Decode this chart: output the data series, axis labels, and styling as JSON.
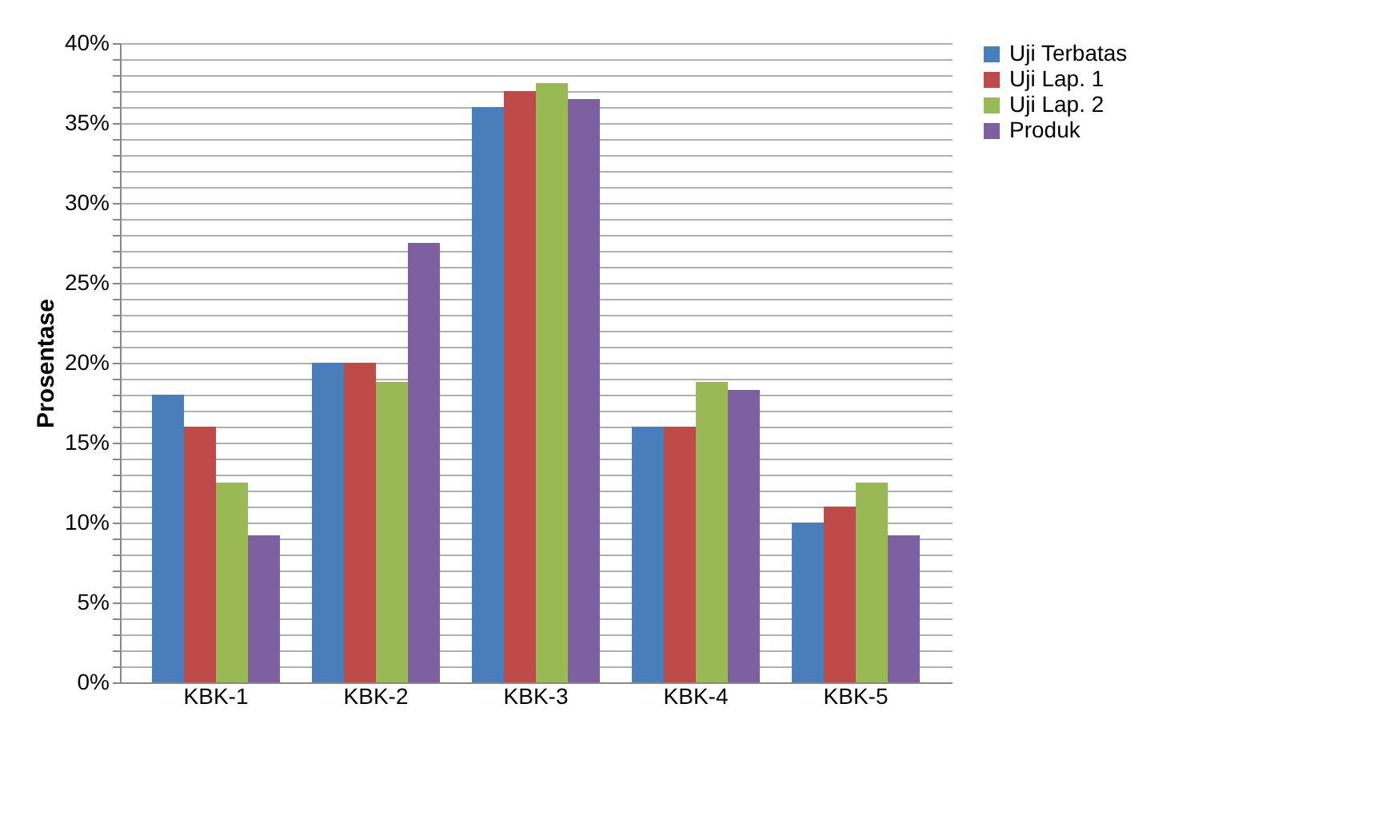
{
  "chart_data": {
    "type": "bar",
    "ylabel": "Prosentase",
    "categories": [
      "KBK-1",
      "KBK-2",
      "KBK-3",
      "KBK-4",
      "KBK-5"
    ],
    "series": [
      {
        "name": "Uji Terbatas",
        "color": "#4a7ebb",
        "values": [
          18,
          20,
          36,
          16,
          10
        ]
      },
      {
        "name": "Uji Lap. 1",
        "color": "#be4b48",
        "values": [
          16,
          20,
          37,
          16,
          11
        ]
      },
      {
        "name": "Uji Lap. 2",
        "color": "#98b954",
        "values": [
          12.5,
          18.8,
          37.5,
          18.8,
          12.5
        ]
      },
      {
        "name": "Produk",
        "color": "#7d60a0",
        "values": [
          9.2,
          27.5,
          36.5,
          18.3,
          9.2
        ]
      }
    ],
    "ylim": [
      0,
      40
    ],
    "yticks": [
      {
        "value": 0,
        "label": "0%"
      },
      {
        "value": 1,
        "label": null
      },
      {
        "value": 2,
        "label": null
      },
      {
        "value": 3,
        "label": null
      },
      {
        "value": 4,
        "label": null
      },
      {
        "value": 5,
        "label": "5%"
      },
      {
        "value": 6,
        "label": null
      },
      {
        "value": 7,
        "label": null
      },
      {
        "value": 8,
        "label": null
      },
      {
        "value": 9,
        "label": null
      },
      {
        "value": 10,
        "label": "10%"
      },
      {
        "value": 11,
        "label": null
      },
      {
        "value": 12,
        "label": null
      },
      {
        "value": 13,
        "label": null
      },
      {
        "value": 14,
        "label": null
      },
      {
        "value": 15,
        "label": "15%"
      },
      {
        "value": 16,
        "label": null
      },
      {
        "value": 17,
        "label": null
      },
      {
        "value": 18,
        "label": null
      },
      {
        "value": 19,
        "label": null
      },
      {
        "value": 20,
        "label": "20%"
      },
      {
        "value": 21,
        "label": null
      },
      {
        "value": 22,
        "label": null
      },
      {
        "value": 23,
        "label": null
      },
      {
        "value": 24,
        "label": null
      },
      {
        "value": 25,
        "label": "25%"
      },
      {
        "value": 26,
        "label": null
      },
      {
        "value": 27,
        "label": null
      },
      {
        "value": 28,
        "label": null
      },
      {
        "value": 29,
        "label": null
      },
      {
        "value": 30,
        "label": "30%"
      },
      {
        "value": 31,
        "label": null
      },
      {
        "value": 32,
        "label": null
      },
      {
        "value": 33,
        "label": null
      },
      {
        "value": 34,
        "label": null
      },
      {
        "value": 35,
        "label": "35%"
      },
      {
        "value": 36,
        "label": null
      },
      {
        "value": 37,
        "label": null
      },
      {
        "value": 38,
        "label": null
      },
      {
        "value": 39,
        "label": null
      },
      {
        "value": 40,
        "label": "40%"
      }
    ],
    "grid": "y",
    "legend": "right"
  }
}
